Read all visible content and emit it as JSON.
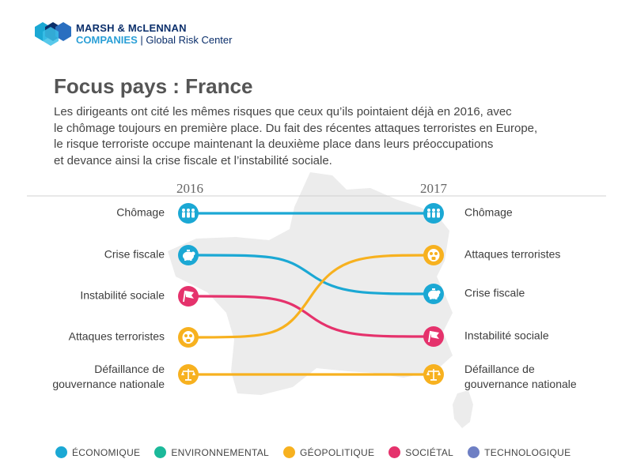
{
  "brand": {
    "line1": "MARSH & McLENNAN",
    "line2_company": "COMPANIES",
    "line2_sep": " | ",
    "line2_center": "Global Risk Center"
  },
  "title": "Focus pays : France",
  "subtitle_lines": [
    "Les dirigeants ont cité les mêmes risques que ceux qu’ils pointaient déjà en 2016, avec",
    "le chômage toujours en première place. Du fait des récentes attaques terroristes en Europe,",
    "le risque terroriste occupe maintenant la deuxième place dans leurs préoccupations",
    "et devance ainsi la crise fiscale et l’instabilité sociale."
  ],
  "colors": {
    "economique": "#1ba8d4",
    "environnemental": "#1bb99a",
    "geopolitique": "#f7b11f",
    "societal": "#e5326c",
    "technologique": "#6e7fc4",
    "map": "#ececec",
    "divider": "#d0d0d0"
  },
  "chart_data": {
    "type": "line",
    "x": [
      "2016",
      "2017"
    ],
    "series": [
      {
        "name": "Chômage",
        "category": "economique",
        "icon": "people-icon",
        "rank_2016": 1,
        "rank_2017": 1
      },
      {
        "name": "Crise fiscale",
        "category": "economique",
        "icon": "piggy-bank-icon",
        "rank_2016": 2,
        "rank_2017": 3
      },
      {
        "name": "Instabilité sociale",
        "category": "societal",
        "icon": "protest-flag-icon",
        "rank_2016": 3,
        "rank_2017": 4
      },
      {
        "name": "Attaques terroristes",
        "category": "geopolitique",
        "icon": "gas-mask-icon",
        "rank_2016": 4,
        "rank_2017": 2
      },
      {
        "name": "Défaillance de gouvernance nationale",
        "category": "geopolitique",
        "icon": "scales-icon",
        "rank_2016": 5,
        "rank_2017": 5
      }
    ],
    "legend": [
      {
        "key": "economique",
        "label": "ÉCONOMIQUE"
      },
      {
        "key": "environnemental",
        "label": "ENVIRONNEMENTAL"
      },
      {
        "key": "geopolitique",
        "label": "GÉOPOLITIQUE"
      },
      {
        "key": "societal",
        "label": "SOCIÉTAL"
      },
      {
        "key": "technologique",
        "label": "TECHNOLOGIQUE"
      }
    ],
    "legend_position": "bottom-left"
  }
}
